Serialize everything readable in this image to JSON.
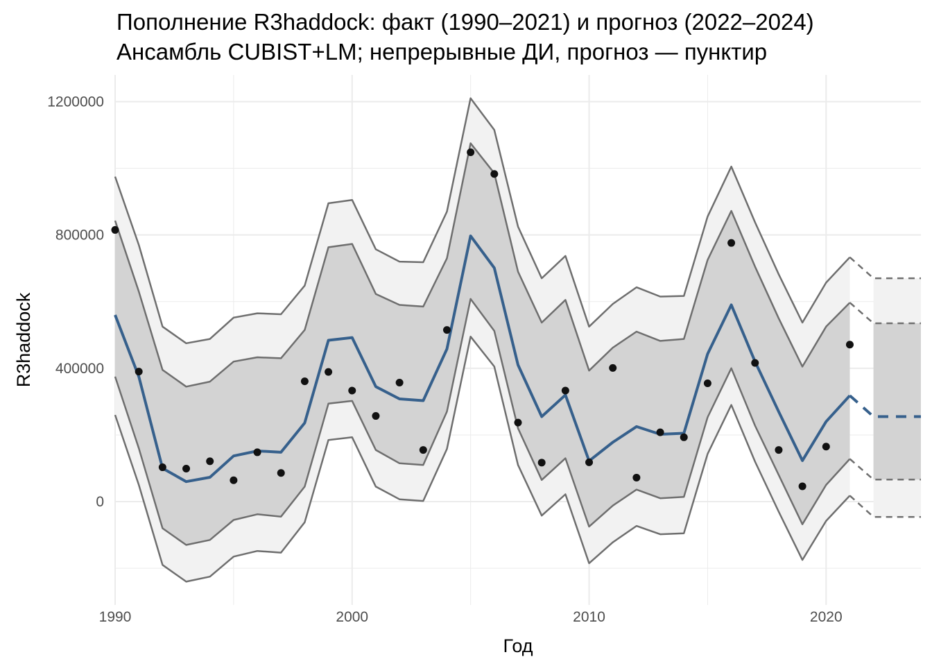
{
  "chart_data": {
    "type": "line",
    "title": "Пополнение R3haddock: факт (1990–2021) и прогноз (2022–2024)",
    "subtitle": "Ансамбль CUBIST+LM; непрерывные ДИ, прогноз — пунктир",
    "xlabel": "Год",
    "ylabel": "R3haddock",
    "xlim": [
      1990,
      2024
    ],
    "ylim": [
      -310000,
      1280000
    ],
    "x_ticks": [
      1990,
      2000,
      2010,
      2020
    ],
    "x_tick_labels": [
      "1990",
      "2000",
      "2010",
      "2020"
    ],
    "y_ticks": [
      0,
      400000,
      800000,
      1200000
    ],
    "y_tick_labels": [
      "0",
      "400000",
      "800000",
      "1200000"
    ],
    "grid": true,
    "legend": "none",
    "colors": {
      "fit_line": "#36608C",
      "points": "#111111",
      "band_outer": "#F2F2F2",
      "band_inner": "#D3D3D3",
      "band_edge": "#6E6E6E",
      "grid": "#EBEBEB"
    },
    "years": [
      1990,
      1991,
      1992,
      1993,
      1994,
      1995,
      1996,
      1997,
      1998,
      1999,
      2000,
      2001,
      2002,
      2003,
      2004,
      2005,
      2006,
      2007,
      2008,
      2009,
      2010,
      2011,
      2012,
      2013,
      2014,
      2015,
      2016,
      2017,
      2018,
      2019,
      2020,
      2021
    ],
    "fitted": [
      560000,
      375000,
      100000,
      60000,
      73000,
      137000,
      152000,
      148000,
      236000,
      484000,
      492000,
      345000,
      308000,
      303000,
      458000,
      797000,
      701000,
      410000,
      255000,
      320000,
      122000,
      178000,
      225000,
      202000,
      205000,
      443000,
      590000,
      420000,
      270000,
      123000,
      240000,
      318000
    ],
    "inner_lower": [
      375000,
      160000,
      -80000,
      -130000,
      -115000,
      -55000,
      -38000,
      -45000,
      45000,
      294000,
      302000,
      155000,
      115000,
      110000,
      270000,
      608000,
      512000,
      220000,
      65000,
      130000,
      -75000,
      -12000,
      36000,
      10000,
      14000,
      253000,
      400000,
      228000,
      80000,
      -68000,
      50000,
      128000
    ],
    "inner_upper": [
      843000,
      630000,
      395000,
      345000,
      360000,
      420000,
      433000,
      430000,
      515000,
      763000,
      773000,
      623000,
      590000,
      585000,
      730000,
      1075000,
      985000,
      690000,
      537000,
      605000,
      393000,
      462000,
      510000,
      482000,
      488000,
      725000,
      872000,
      705000,
      550000,
      405000,
      525000,
      597000
    ],
    "outer_lower": [
      260000,
      50000,
      -190000,
      -240000,
      -225000,
      -165000,
      -148000,
      -153000,
      -62000,
      185000,
      193000,
      45000,
      7000,
      2000,
      158000,
      495000,
      405000,
      110000,
      -42000,
      22000,
      -185000,
      -122000,
      -73000,
      -98000,
      -95000,
      143000,
      290000,
      120000,
      -30000,
      -175000,
      -58000,
      18000
    ],
    "outer_upper": [
      975000,
      770000,
      525000,
      475000,
      488000,
      552000,
      565000,
      562000,
      648000,
      895000,
      905000,
      757000,
      720000,
      718000,
      870000,
      1210000,
      1115000,
      825000,
      670000,
      737000,
      525000,
      593000,
      643000,
      615000,
      617000,
      855000,
      1005000,
      838000,
      682000,
      537000,
      657000,
      733000
    ],
    "observed": [
      815000,
      390000,
      103000,
      99000,
      121000,
      64000,
      148000,
      86000,
      361000,
      389000,
      333000,
      257000,
      357000,
      155000,
      515000,
      1048000,
      983000,
      237000,
      117000,
      333000,
      118000,
      401000,
      72000,
      208000,
      193000,
      355000,
      776000,
      416000,
      155000,
      46000,
      165000,
      471000
    ],
    "forecast_years": [
      2022,
      2023,
      2024
    ],
    "forecast": [
      255000,
      255000,
      255000
    ],
    "forecast_inner_lower": [
      66000,
      66000,
      66000
    ],
    "forecast_inner_upper": [
      535000,
      535000,
      535000
    ],
    "forecast_outer_lower": [
      -46000,
      -46000,
      -46000
    ],
    "forecast_outer_upper": [
      670000,
      670000,
      670000
    ]
  }
}
